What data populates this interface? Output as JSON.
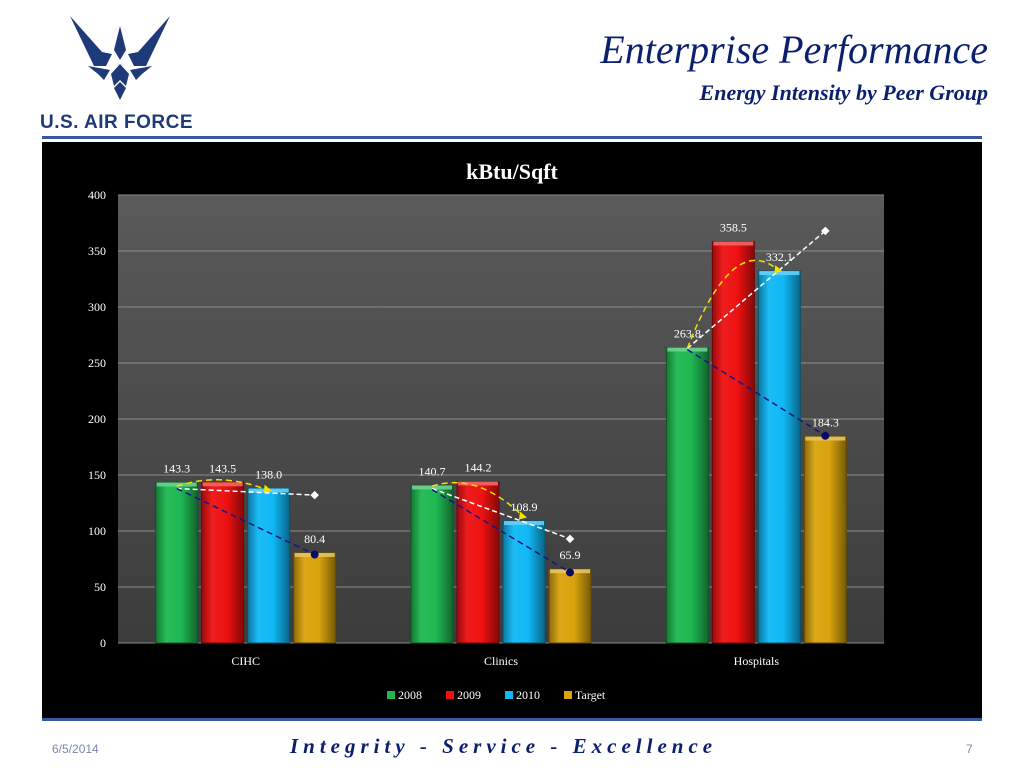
{
  "header": {
    "title": "Enterprise Performance",
    "subtitle": "Energy Intensity by Peer Group",
    "logo_text": "U.S. AIR FORCE",
    "logo_icon": "air-force-symbol"
  },
  "footer": {
    "date": "6/5/2014",
    "motto": "Integrity - Service - Excellence",
    "page": "7"
  },
  "colors": {
    "2008": "#1fb851",
    "2009": "#ee1111",
    "2010": "#10b8f6",
    "Target": "#d8a30c",
    "header_blue": "#0a1f6e"
  },
  "chart_data": {
    "type": "bar",
    "title": "kBtu/Sqft",
    "categories": [
      "CIHC",
      "Clinics",
      "Hospitals"
    ],
    "series": [
      {
        "name": "2008",
        "values": [
          143.3,
          140.7,
          263.8
        ]
      },
      {
        "name": "2009",
        "values": [
          143.5,
          144.2,
          358.5
        ]
      },
      {
        "name": "2010",
        "values": [
          138.0,
          108.9,
          332.1
        ]
      },
      {
        "name": "Target",
        "values": [
          80.4,
          65.9,
          184.3
        ]
      }
    ],
    "data_labels": [
      [
        "143.3",
        "143.5",
        "138.0",
        "80.4"
      ],
      [
        "140.7",
        "144.2",
        "108.9",
        "65.9"
      ],
      [
        "263.8",
        "358.5",
        "332.1",
        "184.3"
      ]
    ],
    "ylim": [
      0,
      400
    ],
    "yticks": [
      0,
      50,
      100,
      150,
      200,
      250,
      300,
      350,
      400
    ],
    "grid": true,
    "legend": "bottom",
    "trendlines": [
      {
        "style": "white-dashed",
        "ends": [
          [
            138.0,
            132.0
          ],
          [
            138.0,
            93.0
          ],
          [
            263.0,
            368.0
          ]
        ]
      },
      {
        "style": "navy-dashed",
        "ends": [
          [
            138.0,
            79.0
          ],
          [
            137.0,
            63.0
          ],
          [
            262.0,
            185.0
          ]
        ]
      },
      {
        "style": "yellow-dashed",
        "points": [
          [
            140.0,
            146.0,
            136.0
          ],
          [
            140.0,
            146.0,
            112.0
          ],
          [
            263.0,
            362.0,
            332.0
          ]
        ]
      }
    ]
  }
}
